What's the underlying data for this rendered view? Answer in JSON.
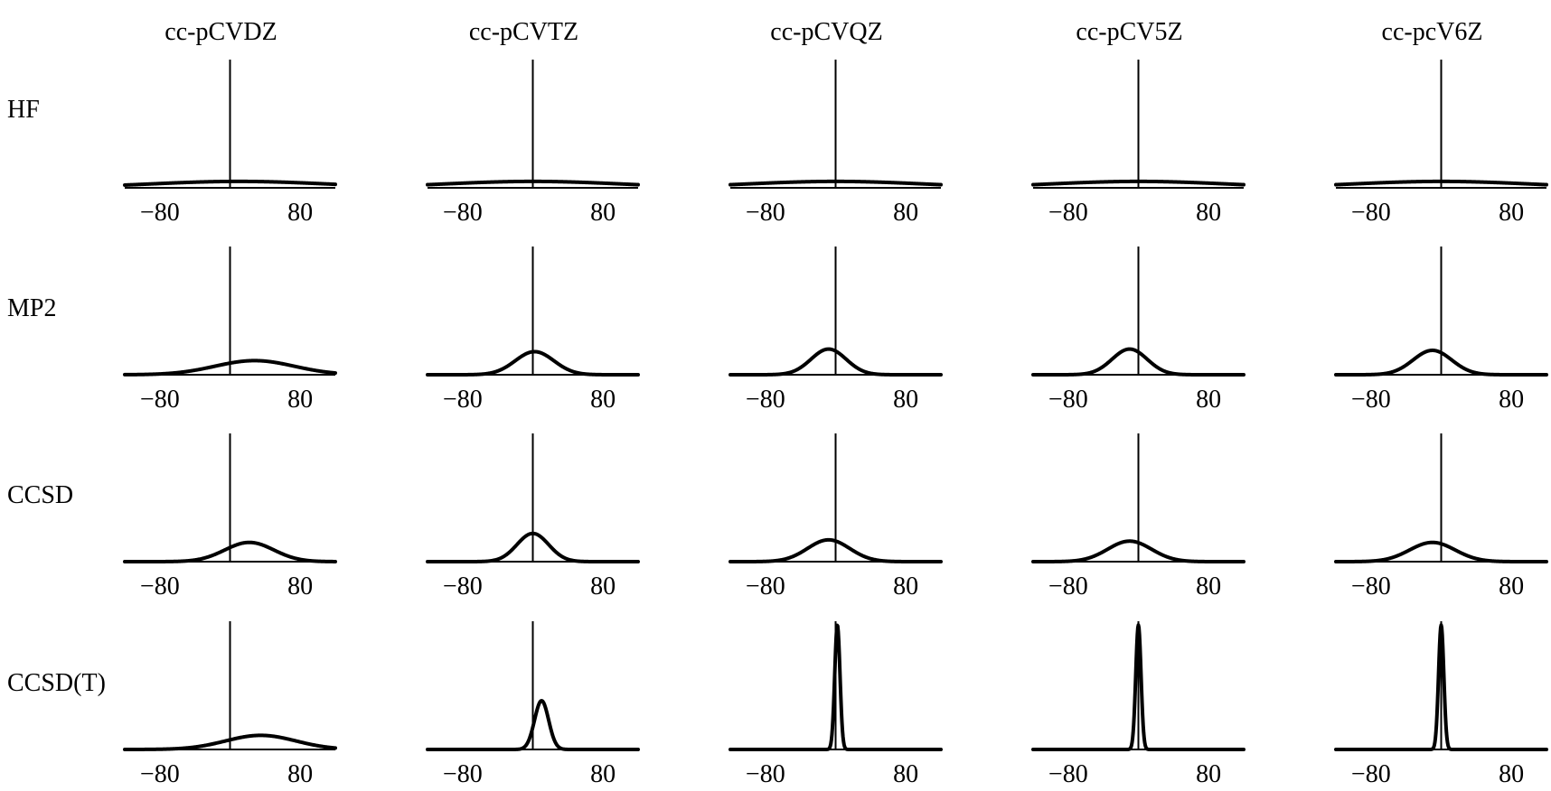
{
  "chart_data": {
    "type": "line",
    "layout": "grid",
    "columns": [
      "cc-pCVDZ",
      "cc-pCVTZ",
      "cc-pCVQZ",
      "cc-pCV5Z",
      "cc-pcV6Z"
    ],
    "rows": [
      "HF",
      "MP2",
      "CCSD",
      "CCSD(T)"
    ],
    "xlim": [
      -120,
      120
    ],
    "ylim": [
      0,
      1
    ],
    "x_ticks": [
      -80,
      80
    ],
    "x_tick_labels": [
      "−80",
      "80"
    ],
    "grid": false,
    "legend": "none",
    "series": [
      {
        "row": "HF",
        "column": "cc-pCVDZ",
        "mu": 10,
        "sigma": 100,
        "peak": 0.05
      },
      {
        "row": "HF",
        "column": "cc-pCVTZ",
        "mu": 0,
        "sigma": 100,
        "peak": 0.05
      },
      {
        "row": "HF",
        "column": "cc-pCVQZ",
        "mu": 0,
        "sigma": 100,
        "peak": 0.05
      },
      {
        "row": "HF",
        "column": "cc-pCV5Z",
        "mu": 0,
        "sigma": 100,
        "peak": 0.05
      },
      {
        "row": "HF",
        "column": "cc-pcV6Z",
        "mu": 0,
        "sigma": 100,
        "peak": 0.05
      },
      {
        "row": "MP2",
        "column": "cc-pCVDZ",
        "mu": 28,
        "sigma": 45,
        "peak": 0.11
      },
      {
        "row": "MP2",
        "column": "cc-pCVTZ",
        "mu": 2,
        "sigma": 22,
        "peak": 0.18
      },
      {
        "row": "MP2",
        "column": "cc-pCVQZ",
        "mu": -8,
        "sigma": 20,
        "peak": 0.2
      },
      {
        "row": "MP2",
        "column": "cc-pCV5Z",
        "mu": -10,
        "sigma": 20,
        "peak": 0.2
      },
      {
        "row": "MP2",
        "column": "cc-pcV6Z",
        "mu": -10,
        "sigma": 22,
        "peak": 0.19
      },
      {
        "row": "CCSD",
        "column": "cc-pCVDZ",
        "mu": 22,
        "sigma": 28,
        "peak": 0.15
      },
      {
        "row": "CCSD",
        "column": "cc-pCVTZ",
        "mu": 0,
        "sigma": 18,
        "peak": 0.22
      },
      {
        "row": "CCSD",
        "column": "cc-pCVQZ",
        "mu": -8,
        "sigma": 24,
        "peak": 0.17
      },
      {
        "row": "CCSD",
        "column": "cc-pCV5Z",
        "mu": -10,
        "sigma": 25,
        "peak": 0.16
      },
      {
        "row": "CCSD",
        "column": "cc-pcV6Z",
        "mu": -10,
        "sigma": 26,
        "peak": 0.15
      },
      {
        "row": "CCSD(T)",
        "column": "cc-pCVDZ",
        "mu": 35,
        "sigma": 40,
        "peak": 0.11
      },
      {
        "row": "CCSD(T)",
        "column": "cc-pCVTZ",
        "mu": 10,
        "sigma": 8,
        "peak": 0.38
      },
      {
        "row": "CCSD(T)",
        "column": "cc-pCVQZ",
        "mu": 2,
        "sigma": 3,
        "peak": 0.97
      },
      {
        "row": "CCSD(T)",
        "column": "cc-pCV5Z",
        "mu": 0,
        "sigma": 3,
        "peak": 0.97
      },
      {
        "row": "CCSD(T)",
        "column": "cc-pcV6Z",
        "mu": 0,
        "sigma": 3,
        "peak": 0.97
      }
    ]
  }
}
